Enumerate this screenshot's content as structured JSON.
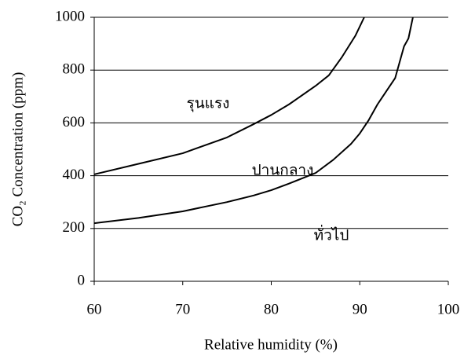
{
  "chart_data": {
    "type": "line",
    "xlabel": "Relative humidity (%)",
    "ylabel": "CO₂ Concentration (ppm)",
    "xlim": [
      60,
      100
    ],
    "xticks": [
      60,
      70,
      80,
      90,
      100
    ],
    "ylim": [
      0,
      1000
    ],
    "yticks": [
      0,
      200,
      400,
      600,
      800,
      1000
    ],
    "grid": true,
    "series": [
      {
        "color": "#000000",
        "x": [
          60,
          65,
          70,
          75,
          78,
          80,
          82,
          85,
          86.5,
          88,
          89.5,
          90.5
        ],
        "values": [
          405,
          445,
          485,
          545,
          595,
          630,
          670,
          740,
          780,
          850,
          930,
          1000
        ]
      },
      {
        "color": "#000000",
        "x": [
          60,
          65,
          70,
          75,
          78,
          80,
          82,
          85,
          87,
          89,
          90,
          91,
          92,
          93,
          94,
          94.5,
          95,
          95.5,
          96
        ],
        "values": [
          220,
          240,
          265,
          300,
          325,
          345,
          370,
          410,
          460,
          520,
          560,
          610,
          670,
          720,
          770,
          830,
          890,
          920,
          1000
        ]
      }
    ],
    "annotations": [
      "รุนแรง",
      "ปานกลาง",
      "ทั่วไป"
    ]
  }
}
